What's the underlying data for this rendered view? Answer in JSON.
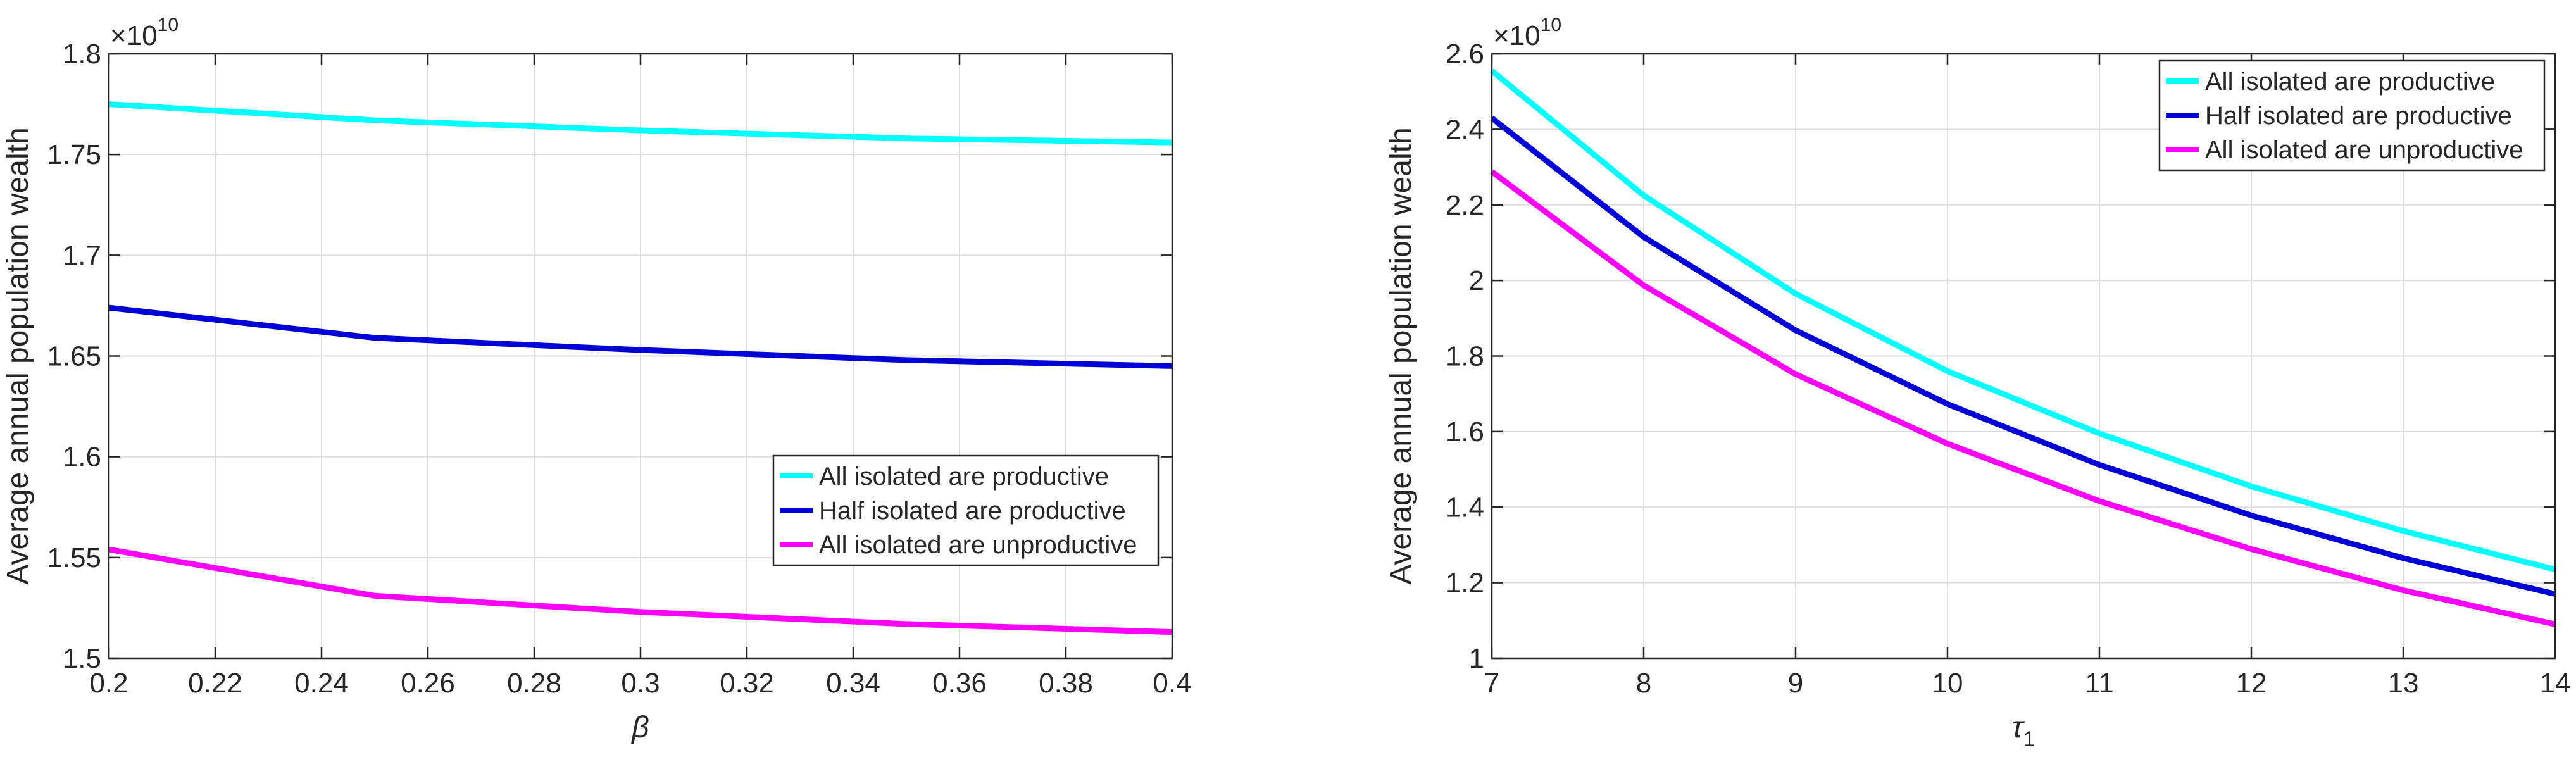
{
  "chart_data": [
    {
      "type": "line",
      "ylabel": "Average annual population wealth",
      "xlabel": "β",
      "multiplier_base": "×10",
      "multiplier_exp": "10",
      "xlim": [
        0.2,
        0.4
      ],
      "ylim": [
        1.5,
        1.8
      ],
      "xticks": [
        "0.2",
        "0.22",
        "0.24",
        "0.26",
        "0.28",
        "0.3",
        "0.32",
        "0.34",
        "0.36",
        "0.38",
        "0.4"
      ],
      "xtick_values": [
        0.2,
        0.22,
        0.24,
        0.26,
        0.28,
        0.3,
        0.32,
        0.34,
        0.36,
        0.38,
        0.4
      ],
      "yticks": [
        "1.5",
        "1.55",
        "1.6",
        "1.65",
        "1.7",
        "1.75",
        "1.8"
      ],
      "ytick_values": [
        1.5,
        1.55,
        1.6,
        1.65,
        1.7,
        1.75,
        1.8
      ],
      "grid": true,
      "legend_position": "lower-right",
      "x": [
        0.2,
        0.25,
        0.3,
        0.35,
        0.4
      ],
      "series": [
        {
          "name": "All isolated are productive",
          "color": "#00ffff",
          "values": [
            1.775,
            1.767,
            1.762,
            1.758,
            1.756
          ]
        },
        {
          "name": "Half isolated are productive",
          "color": "#0000d6",
          "values": [
            1.674,
            1.659,
            1.653,
            1.648,
            1.645
          ]
        },
        {
          "name": "All isolated are unproductive",
          "color": "#ff00ff",
          "values": [
            1.554,
            1.531,
            1.523,
            1.517,
            1.513
          ]
        }
      ]
    },
    {
      "type": "line",
      "ylabel": "Average annual population wealth",
      "xlabel": "τ",
      "xlabel_sub": "1",
      "multiplier_base": "×10",
      "multiplier_exp": "10",
      "xlim": [
        7,
        14
      ],
      "ylim": [
        1.0,
        2.6
      ],
      "xticks": [
        "7",
        "8",
        "9",
        "10",
        "11",
        "12",
        "13",
        "14"
      ],
      "xtick_values": [
        7,
        8,
        9,
        10,
        11,
        12,
        13,
        14
      ],
      "yticks": [
        "1",
        "1.2",
        "1.4",
        "1.6",
        "1.8",
        "2",
        "2.2",
        "2.4",
        "2.6"
      ],
      "ytick_values": [
        1.0,
        1.2,
        1.4,
        1.6,
        1.8,
        2.0,
        2.2,
        2.4,
        2.6
      ],
      "grid": true,
      "legend_position": "top-right",
      "x": [
        7,
        8,
        9,
        10,
        11,
        12,
        13,
        14
      ],
      "series": [
        {
          "name": "All isolated are productive",
          "color": "#00ffff",
          "values": [
            2.555,
            2.225,
            1.965,
            1.76,
            1.595,
            1.455,
            1.337,
            1.235
          ]
        },
        {
          "name": "Half isolated are productive",
          "color": "#0000d6",
          "values": [
            2.43,
            2.115,
            1.868,
            1.673,
            1.512,
            1.378,
            1.265,
            1.17
          ]
        },
        {
          "name": "All isolated are unproductive",
          "color": "#ff00ff",
          "values": [
            2.288,
            1.987,
            1.752,
            1.568,
            1.416,
            1.289,
            1.18,
            1.09
          ]
        }
      ]
    }
  ]
}
